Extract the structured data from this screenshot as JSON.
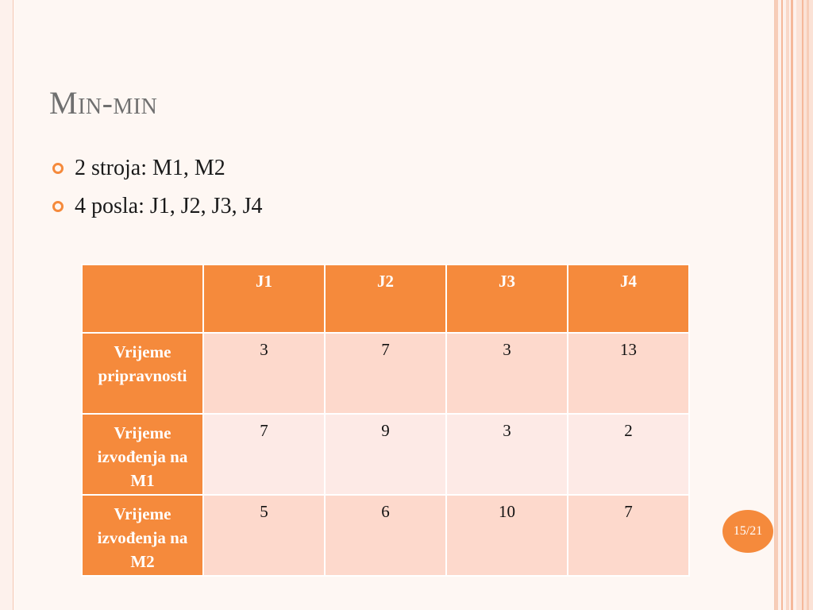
{
  "slide": {
    "title": "Min-min",
    "bullets": [
      "2 stroja: M1, M2",
      "4 posla: J1, J2, J3, J4"
    ],
    "page_number": "15/21"
  },
  "table": {
    "corner": "",
    "columns": [
      "J1",
      "J2",
      "J3",
      "J4"
    ],
    "rows": [
      {
        "label": "Vrijeme pripravnosti",
        "values": [
          "3",
          "7",
          "3",
          "13"
        ]
      },
      {
        "label": "Vrijeme izvođenja na M1",
        "values": [
          "7",
          "9",
          "3",
          "2"
        ]
      },
      {
        "label": "Vrijeme izvođenja na M2",
        "values": [
          "5",
          "6",
          "10",
          "7"
        ]
      }
    ]
  },
  "colors": {
    "accent": "#f58a3c",
    "row_light": "#fdd9cc",
    "row_lighter": "#fdeae6",
    "background": "#fef7f3"
  }
}
